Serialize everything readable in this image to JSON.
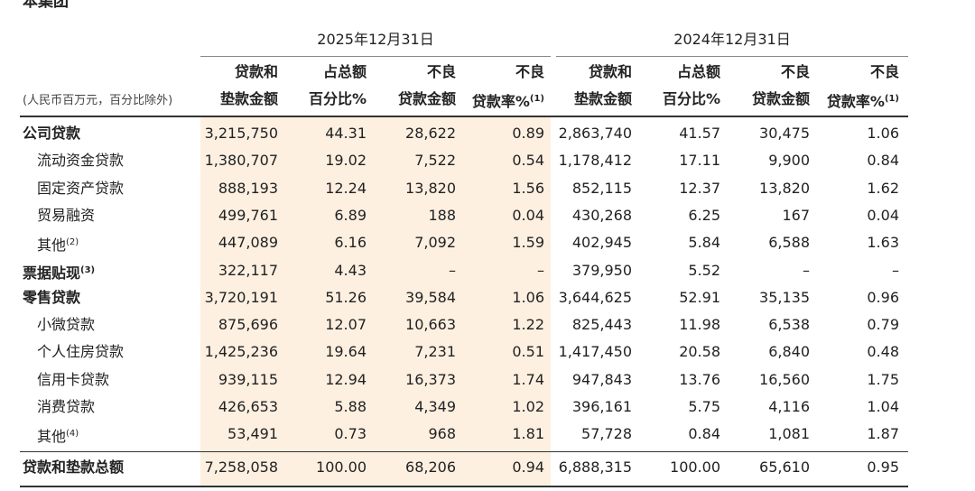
{
  "header": {
    "title": "本集团",
    "unit_note": "(人民币百万元，百分比除外)",
    "periods": [
      {
        "date": "2025年12月31日",
        "columns": [
          {
            "lines": [
              "贷款和",
              "垫款金额"
            ]
          },
          {
            "lines": [
              "占总额",
              "百分比%"
            ]
          },
          {
            "lines": [
              "不良",
              "贷款金额"
            ]
          },
          {
            "lines": [
              "不良",
              "贷款率%"
            ],
            "note": "(1)"
          }
        ]
      },
      {
        "date": "2024年12月31日",
        "columns": [
          {
            "lines": [
              "贷款和",
              "垫款金额"
            ]
          },
          {
            "lines": [
              "占总额",
              "百分比%"
            ]
          },
          {
            "lines": [
              "不良",
              "贷款金额"
            ]
          },
          {
            "lines": [
              "不良",
              "贷款率%"
            ],
            "note": "(1)"
          }
        ]
      }
    ]
  },
  "table": {
    "groups": [
      {
        "label": "公司贷款",
        "cells": [
          "3,215,750",
          "44.31",
          "28,622",
          "0.89",
          "2,863,740",
          "41.57",
          "30,475",
          "1.06"
        ],
        "items": [
          {
            "label": "流动资金贷款",
            "cells": [
              "1,380,707",
              "19.02",
              "7,522",
              "0.54",
              "1,178,412",
              "17.11",
              "9,900",
              "0.84"
            ]
          },
          {
            "label": "固定资产贷款",
            "cells": [
              "888,193",
              "12.24",
              "13,820",
              "1.56",
              "852,115",
              "12.37",
              "13,820",
              "1.62"
            ]
          },
          {
            "label": "贸易融资",
            "cells": [
              "499,761",
              "6.89",
              "188",
              "0.04",
              "430,268",
              "6.25",
              "167",
              "0.04"
            ]
          },
          {
            "label": "其他",
            "note": "(2)",
            "cells": [
              "447,089",
              "6.16",
              "7,092",
              "1.59",
              "402,945",
              "5.84",
              "6,588",
              "1.63"
            ]
          }
        ]
      },
      {
        "label": "票据贴现",
        "note": "(3)",
        "cells": [
          "322,117",
          "4.43",
          "–",
          "–",
          "379,950",
          "5.52",
          "–",
          "–"
        ],
        "items": []
      },
      {
        "label": "零售贷款",
        "cells": [
          "3,720,191",
          "51.26",
          "39,584",
          "1.06",
          "3,644,625",
          "52.91",
          "35,135",
          "0.96"
        ],
        "items": [
          {
            "label": "小微贷款",
            "cells": [
              "875,696",
              "12.07",
              "10,663",
              "1.22",
              "825,443",
              "11.98",
              "6,538",
              "0.79"
            ]
          },
          {
            "label": "个人住房贷款",
            "cells": [
              "1,425,236",
              "19.64",
              "7,231",
              "0.51",
              "1,417,450",
              "20.58",
              "6,840",
              "0.48"
            ]
          },
          {
            "label": "信用卡贷款",
            "cells": [
              "939,115",
              "12.94",
              "16,373",
              "1.74",
              "947,843",
              "13.76",
              "16,560",
              "1.75"
            ]
          },
          {
            "label": "消费贷款",
            "cells": [
              "426,653",
              "5.88",
              "4,349",
              "1.02",
              "396,161",
              "5.75",
              "4,116",
              "1.04"
            ]
          },
          {
            "label": "其他",
            "note": "(4)",
            "cells": [
              "53,491",
              "0.73",
              "968",
              "1.81",
              "57,728",
              "0.84",
              "1,081",
              "1.87"
            ]
          }
        ]
      }
    ],
    "total": {
      "label": "贷款和垫款总额",
      "cells": [
        "7,258,058",
        "100.00",
        "68,206",
        "0.94",
        "6,888,315",
        "100.00",
        "65,610",
        "0.95"
      ]
    }
  }
}
